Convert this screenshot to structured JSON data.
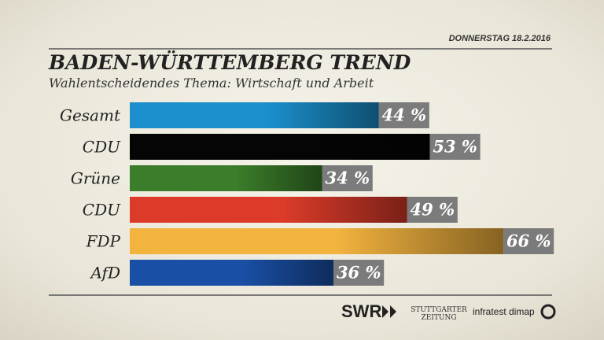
{
  "date": "DONNERSTAG 18.2.2016",
  "chart_data": {
    "type": "bar",
    "orientation": "horizontal",
    "title": "BADEN-WÜRTTEMBERG TREND",
    "subtitle": "Wahlentscheidendes Thema: Wirtschaft und Arbeit",
    "categories": [
      "Gesamt",
      "CDU",
      "Grüne",
      "CDU",
      "FDP",
      "AfD"
    ],
    "values": [
      44,
      53,
      34,
      49,
      66,
      36
    ],
    "value_labels": [
      "44 %",
      "53 %",
      "34 %",
      "49 %",
      "66 %",
      "36 %"
    ],
    "colors": [
      "#1b8fcc",
      "#050505",
      "#3b7d2a",
      "#dc3b29",
      "#f3b33f",
      "#1a4fa6"
    ]
  },
  "footer": {
    "logos": [
      "SWR",
      "STUTTGARTER",
      "ZEITUNG",
      "infratest dimap"
    ]
  }
}
